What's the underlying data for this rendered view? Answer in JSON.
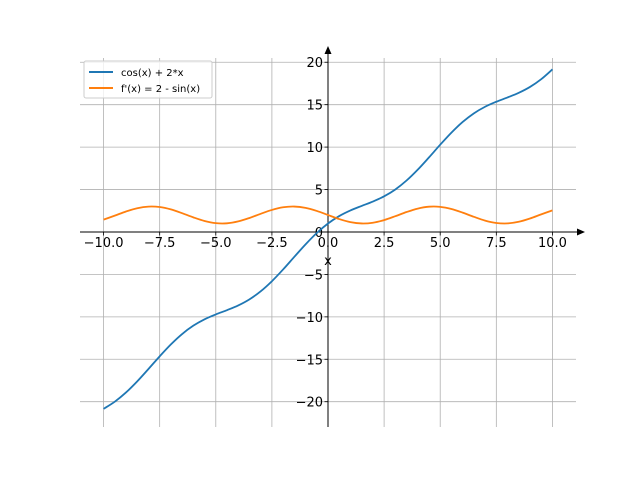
{
  "chart_data": {
    "type": "line",
    "title": "",
    "xlabel": "x",
    "ylabel": "",
    "xlim": [
      -11.05,
      11.05
    ],
    "ylim": [
      -22.98,
      20.5
    ],
    "grid": true,
    "legend_position": "top-left",
    "x_ticks": [
      -10,
      -7.5,
      -5,
      -2.5,
      0,
      2.5,
      5,
      7.5,
      10
    ],
    "x_tick_labels": [
      "−10.0",
      "−7.5",
      "−5.0",
      "−2.5",
      "0.0",
      "2.5",
      "5.0",
      "7.5",
      "10.0"
    ],
    "y_ticks": [
      -20,
      -15,
      -10,
      -5,
      0,
      5,
      10,
      15,
      20
    ],
    "y_tick_labels": [
      "−20",
      "−15",
      "−10",
      "−5",
      "0",
      "5",
      "10",
      "15",
      "20"
    ],
    "x_domain": [
      -10,
      10
    ],
    "series": [
      {
        "name": "cos(x) + 2*x",
        "color": "#1f77b4",
        "x": [
          -10,
          -9.5,
          -9,
          -8.5,
          -8,
          -7.5,
          -7,
          -6.5,
          -6,
          -5.5,
          -5,
          -4.5,
          -4,
          -3.5,
          -3,
          -2.5,
          -2,
          -1.5,
          -1,
          -0.5,
          0,
          0.5,
          1,
          1.5,
          2,
          2.5,
          3,
          3.5,
          4,
          4.5,
          5,
          5.5,
          6,
          6.5,
          7,
          7.5,
          8,
          8.5,
          9,
          9.5,
          10
        ],
        "y": [
          -20.84,
          -19.997,
          -18.911,
          -17.602,
          -16.146,
          -14.654,
          -13.246,
          -12.023,
          -11.04,
          -10.291,
          -9.716,
          -9.211,
          -8.654,
          -7.936,
          -6.99,
          -5.801,
          -4.416,
          -2.929,
          -1.46,
          -0.122,
          1.0,
          1.878,
          2.54,
          3.071,
          3.584,
          4.199,
          5.01,
          6.064,
          7.346,
          8.789,
          10.284,
          11.709,
          12.96,
          13.977,
          14.754,
          15.346,
          15.854,
          16.398,
          17.089,
          18.003,
          19.161
        ]
      },
      {
        "name": "f'(x) = 2 - sin(x)",
        "color": "#ff7f0e",
        "x": [
          -10,
          -9.5,
          -9,
          -8.5,
          -8,
          -7.5,
          -7,
          -6.5,
          -6,
          -5.5,
          -5,
          -4.5,
          -4,
          -3.5,
          -3,
          -2.5,
          -2,
          -1.5,
          -1,
          -0.5,
          0,
          0.5,
          1,
          1.5,
          2,
          2.5,
          3,
          3.5,
          4,
          4.5,
          5,
          5.5,
          6,
          6.5,
          7,
          7.5,
          8,
          8.5,
          9,
          9.5,
          10
        ],
        "y": [
          1.456,
          1.925,
          2.412,
          2.798,
          2.989,
          2.938,
          2.657,
          2.215,
          1.721,
          1.295,
          1.041,
          1.022,
          1.243,
          1.649,
          2.141,
          2.598,
          2.909,
          2.997,
          2.841,
          2.479,
          2.0,
          1.521,
          1.159,
          1.003,
          1.091,
          1.402,
          1.859,
          2.351,
          2.757,
          2.978,
          2.959,
          2.706,
          2.279,
          1.785,
          1.343,
          1.062,
          1.011,
          1.202,
          1.588,
          2.075,
          2.544
        ]
      }
    ]
  },
  "legend": {
    "entries": [
      "cos(x) + 2*x",
      "f'(x) = 2 - sin(x)"
    ]
  }
}
